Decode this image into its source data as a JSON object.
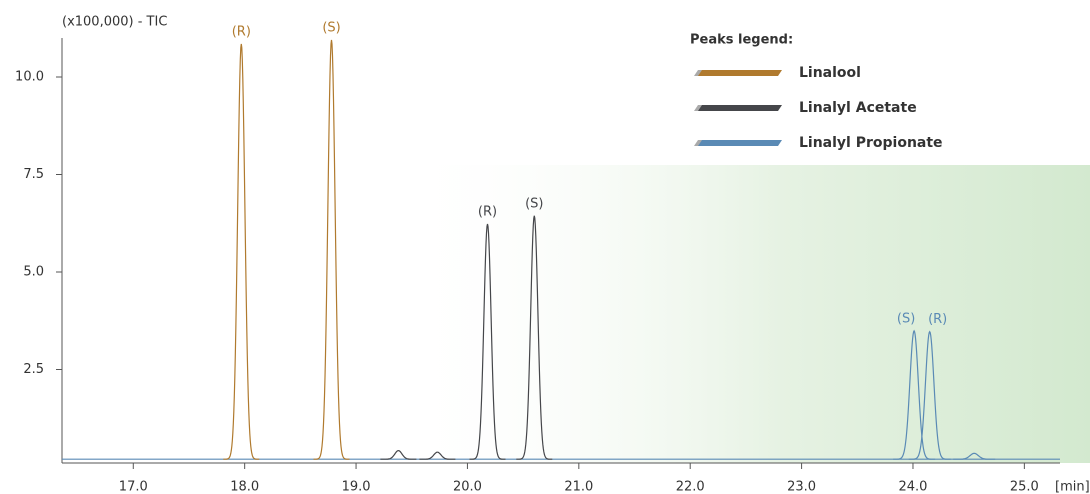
{
  "chart_data": {
    "type": "chromatogram",
    "ylabel": "(x100,000) - TIC",
    "xlabel": "[min]",
    "legend_title": "Peaks legend:",
    "xlim": [
      16.36,
      25.32
    ],
    "ylim": [
      0,
      11
    ],
    "xticks": [
      {
        "value": 17,
        "label": "17.0"
      },
      {
        "value": 18,
        "label": "18.0"
      },
      {
        "value": 19,
        "label": "19.0"
      },
      {
        "value": 20,
        "label": "20.0"
      },
      {
        "value": 21,
        "label": "21.0"
      },
      {
        "value": 22,
        "label": "22.0"
      },
      {
        "value": 23,
        "label": "23.0"
      },
      {
        "value": 24,
        "label": "24.0"
      },
      {
        "value": 25,
        "label": "25.0"
      }
    ],
    "yticks": [
      2.5,
      {
        "value": 5,
        "label": "5.0"
      },
      7.5,
      {
        "value": 10,
        "label": "10.0"
      }
    ],
    "baseline": 0.2,
    "series": [
      {
        "name": "Linalool",
        "color": "#b07a2e",
        "x": [
          17.97,
          18.78
        ],
        "values": [
          10.85,
          10.95
        ],
        "labels": [
          "(R)",
          "(S)"
        ]
      },
      {
        "name": "Linalyl Acetate",
        "color": "#45464a",
        "x": [
          19.38,
          19.73,
          20.18,
          20.6
        ],
        "values": [
          0.42,
          0.38,
          6.23,
          6.44
        ],
        "labels": [
          null,
          null,
          "(R)",
          "(S)"
        ]
      },
      {
        "name": "Linalyl Propionate",
        "color": "#5a8ab5",
        "x": [
          24.01,
          24.15,
          24.55
        ],
        "values": [
          3.49,
          3.47,
          0.35
        ],
        "labels": [
          "(S)",
          "(R)",
          null
        ]
      }
    ]
  }
}
